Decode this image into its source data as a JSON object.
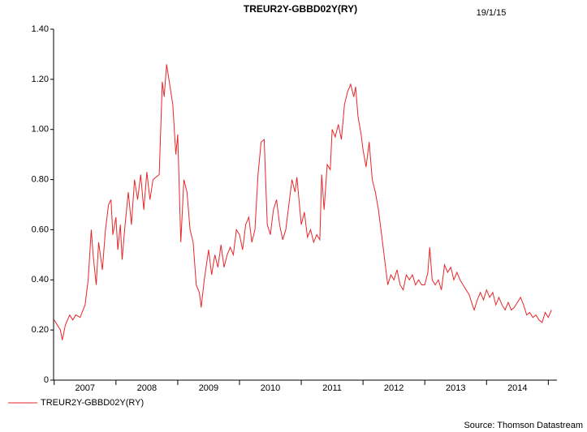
{
  "chart_data": {
    "type": "line",
    "title": "TREUR2Y-GBBD02Y(RY)",
    "date": "19/1/15",
    "source": "Source: Thomson Datastream",
    "year_labels": [
      "2007",
      "2008",
      "2009",
      "2010",
      "2011",
      "2012",
      "2013",
      "2014"
    ],
    "xticks": [
      2007,
      2008,
      2009,
      2010,
      2011,
      2012,
      2013,
      2014,
      2015
    ],
    "xlim": [
      2006.99,
      2015.14
    ],
    "ylim": [
      0,
      1.4
    ],
    "yticks": [
      0,
      {
        "value": 0.2,
        "label": "0.20"
      },
      {
        "value": 0.4,
        "label": "0.40"
      },
      {
        "value": 0.6,
        "label": "0.60"
      },
      {
        "value": 0.8,
        "label": "0.80"
      },
      {
        "value": 1.0,
        "label": "1.00"
      },
      {
        "value": 1.2,
        "label": "1.20"
      },
      {
        "value": 1.4,
        "label": "1.40"
      }
    ],
    "x": [
      2007.0,
      2007.05,
      2007.1,
      2007.13,
      2007.18,
      2007.25,
      2007.3,
      2007.35,
      2007.42,
      2007.5,
      2007.55,
      2007.6,
      2007.63,
      2007.68,
      2007.72,
      2007.78,
      2007.83,
      2007.88,
      2007.92,
      2007.95,
      2008.0,
      2008.03,
      2008.07,
      2008.1,
      2008.14,
      2008.2,
      2008.25,
      2008.3,
      2008.35,
      2008.4,
      2008.45,
      2008.5,
      2008.55,
      2008.6,
      2008.7,
      2008.75,
      2008.78,
      2008.82,
      2008.87,
      2008.92,
      2008.97,
      2009.0,
      2009.05,
      2009.1,
      2009.15,
      2009.2,
      2009.25,
      2009.3,
      2009.35,
      2009.38,
      2009.43,
      2009.5,
      2009.55,
      2009.6,
      2009.65,
      2009.7,
      2009.75,
      2009.8,
      2009.85,
      2009.9,
      2009.95,
      2010.0,
      2010.05,
      2010.1,
      2010.15,
      2010.2,
      2010.25,
      2010.3,
      2010.35,
      2010.4,
      2010.45,
      2010.5,
      2010.55,
      2010.6,
      2010.65,
      2010.7,
      2010.75,
      2010.8,
      2010.85,
      2010.9,
      2010.93,
      2010.97,
      2011.0,
      2011.05,
      2011.1,
      2011.15,
      2011.2,
      2011.25,
      2011.3,
      2011.33,
      2011.37,
      2011.42,
      2011.47,
      2011.5,
      2011.55,
      2011.6,
      2011.65,
      2011.7,
      2011.75,
      2011.8,
      2011.85,
      2011.88,
      2011.92,
      2011.97,
      2012.0,
      2012.05,
      2012.1,
      2012.15,
      2012.2,
      2012.25,
      2012.3,
      2012.35,
      2012.4,
      2012.45,
      2012.5,
      2012.55,
      2012.6,
      2012.65,
      2012.7,
      2012.75,
      2012.8,
      2012.85,
      2012.9,
      2012.95,
      2013.0,
      2013.05,
      2013.08,
      2013.12,
      2013.17,
      2013.22,
      2013.27,
      2013.32,
      2013.37,
      2013.42,
      2013.47,
      2013.52,
      2013.57,
      2013.62,
      2013.67,
      2013.72,
      2013.77,
      2013.8,
      2013.85,
      2013.9,
      2013.95,
      2014.0,
      2014.05,
      2014.1,
      2014.15,
      2014.2,
      2014.25,
      2014.3,
      2014.35,
      2014.4,
      2014.45,
      2014.5,
      2014.55,
      2014.6,
      2014.65,
      2014.7,
      2014.75,
      2014.8,
      2014.85,
      2014.9,
      2014.95,
      2015.0,
      2015.05
    ],
    "series": [
      {
        "name": "TREUR2Y-GBBD02Y(RY)",
        "color": "#e8262a",
        "values": [
          0.24,
          0.22,
          0.2,
          0.16,
          0.22,
          0.26,
          0.24,
          0.26,
          0.25,
          0.3,
          0.4,
          0.6,
          0.5,
          0.38,
          0.55,
          0.44,
          0.6,
          0.7,
          0.72,
          0.58,
          0.65,
          0.52,
          0.62,
          0.48,
          0.6,
          0.75,
          0.62,
          0.8,
          0.72,
          0.82,
          0.68,
          0.83,
          0.72,
          0.8,
          0.82,
          1.19,
          1.13,
          1.26,
          1.18,
          1.1,
          0.9,
          0.98,
          0.55,
          0.8,
          0.75,
          0.6,
          0.55,
          0.38,
          0.35,
          0.29,
          0.4,
          0.52,
          0.42,
          0.5,
          0.45,
          0.54,
          0.45,
          0.5,
          0.53,
          0.5,
          0.6,
          0.58,
          0.52,
          0.62,
          0.65,
          0.55,
          0.6,
          0.82,
          0.95,
          0.96,
          0.62,
          0.58,
          0.68,
          0.72,
          0.62,
          0.56,
          0.6,
          0.7,
          0.8,
          0.75,
          0.81,
          0.7,
          0.62,
          0.67,
          0.57,
          0.6,
          0.55,
          0.58,
          0.56,
          0.82,
          0.68,
          0.86,
          0.84,
          1.0,
          0.97,
          1.02,
          0.96,
          1.1,
          1.15,
          1.18,
          1.13,
          1.17,
          1.05,
          0.98,
          0.92,
          0.85,
          0.95,
          0.8,
          0.75,
          0.68,
          0.58,
          0.48,
          0.38,
          0.42,
          0.4,
          0.44,
          0.38,
          0.36,
          0.42,
          0.4,
          0.42,
          0.38,
          0.4,
          0.38,
          0.38,
          0.43,
          0.53,
          0.4,
          0.38,
          0.4,
          0.36,
          0.46,
          0.43,
          0.45,
          0.4,
          0.43,
          0.4,
          0.38,
          0.36,
          0.34,
          0.3,
          0.28,
          0.32,
          0.35,
          0.32,
          0.36,
          0.33,
          0.35,
          0.3,
          0.33,
          0.3,
          0.28,
          0.31,
          0.28,
          0.29,
          0.31,
          0.33,
          0.3,
          0.26,
          0.27,
          0.25,
          0.26,
          0.24,
          0.23,
          0.27,
          0.25,
          0.28
        ]
      }
    ]
  }
}
